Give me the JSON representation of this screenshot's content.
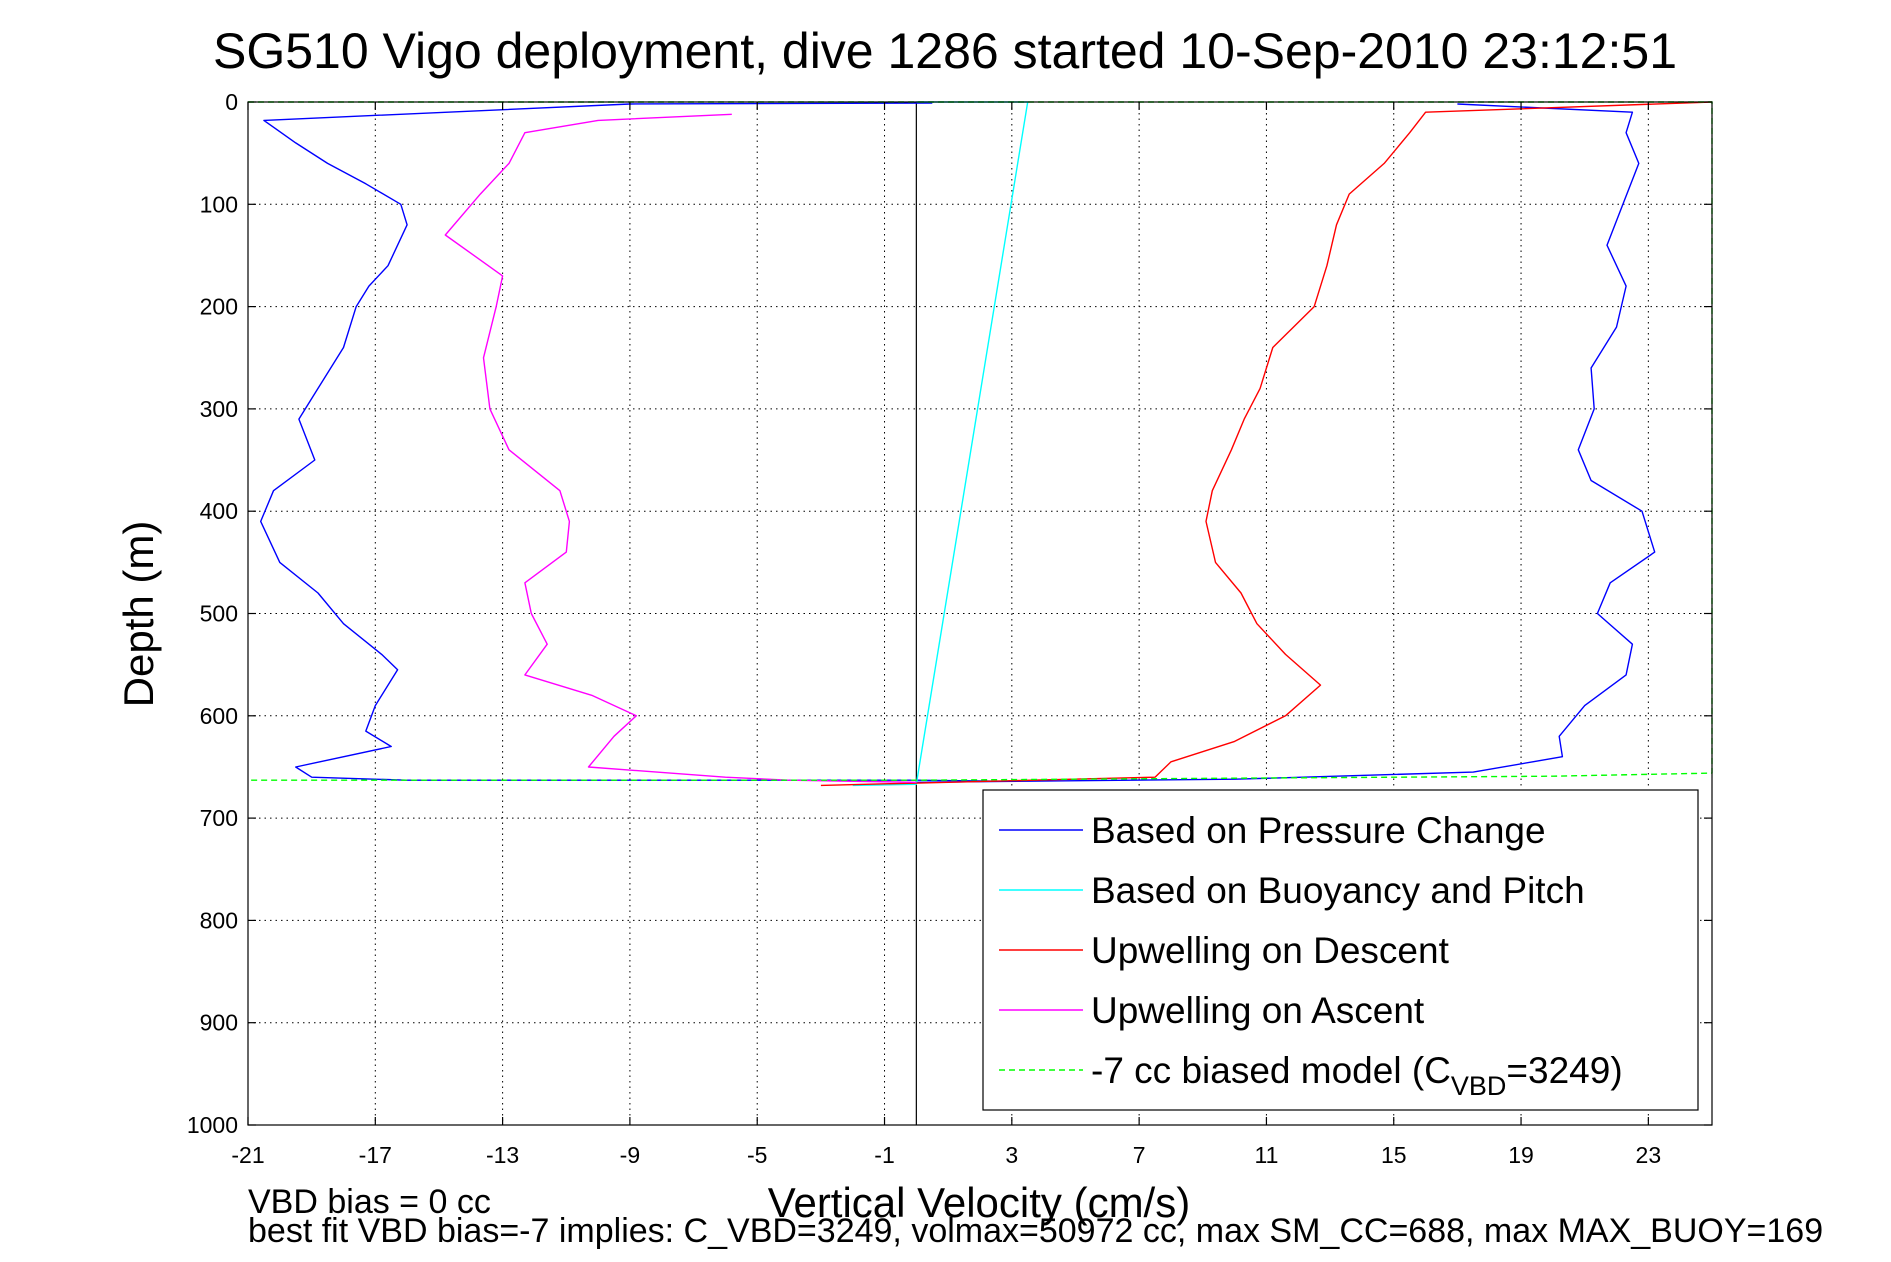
{
  "chart_data": {
    "type": "line",
    "title": "SG510 Vigo deployment, dive 1286 started 10-Sep-2010 23:12:51",
    "xlabel": "Vertical Velocity (cm/s)",
    "ylabel": "Depth (m)",
    "xlim": [
      -21,
      25
    ],
    "ylim": [
      0,
      1000
    ],
    "y_reversed": true,
    "grid": true,
    "xticks": [
      -21,
      -17,
      -13,
      -9,
      -5,
      -1,
      3,
      7,
      11,
      15,
      19,
      23
    ],
    "yticks": [
      0,
      100,
      200,
      300,
      400,
      500,
      600,
      700,
      800,
      900,
      1000
    ],
    "zero_line": 0,
    "legend": {
      "placement": "bottom-right",
      "entries": [
        {
          "label": "Based on Pressure Change",
          "color": "#0000ff",
          "dash": false
        },
        {
          "label": "Based on Buoyancy and Pitch",
          "color": "#00ffff",
          "dash": false
        },
        {
          "label": "Upwelling on Descent",
          "color": "#ff0000",
          "dash": false
        },
        {
          "label": "Upwelling on Ascent",
          "color": "#ff00ff",
          "dash": false
        },
        {
          "label": "-7 cc biased model (C",
          "sub": "VBD",
          "suffix": "=3249)",
          "color": "#00ff00",
          "dash": true
        }
      ]
    },
    "series": [
      {
        "name": "Based on Pressure Change (descent)",
        "color": "#0000ff",
        "points": [
          [
            0.5,
            1
          ],
          [
            -9,
            2
          ],
          [
            -20.5,
            18
          ],
          [
            -19.5,
            40
          ],
          [
            -18.5,
            60
          ],
          [
            -17.3,
            80
          ],
          [
            -16.2,
            100
          ],
          [
            -16,
            120
          ],
          [
            -16.6,
            160
          ],
          [
            -17.2,
            180
          ],
          [
            -17.6,
            200
          ],
          [
            -18,
            240
          ],
          [
            -18.8,
            280
          ],
          [
            -19.4,
            310
          ],
          [
            -18.9,
            350
          ],
          [
            -20.2,
            380
          ],
          [
            -20.6,
            410
          ],
          [
            -20,
            450
          ],
          [
            -18.8,
            480
          ],
          [
            -18,
            510
          ],
          [
            -16.8,
            540
          ],
          [
            -16.3,
            555
          ],
          [
            -17,
            590
          ],
          [
            -17.3,
            615
          ],
          [
            -16.5,
            630
          ],
          [
            -19.5,
            650
          ],
          [
            -19,
            660
          ],
          [
            -16,
            663
          ],
          [
            0,
            663
          ],
          [
            3,
            664
          ]
        ]
      },
      {
        "name": "Based on Pressure Change (ascent)",
        "color": "#0000ff",
        "points": [
          [
            17,
            2
          ],
          [
            22.5,
            10
          ],
          [
            22.3,
            30
          ],
          [
            22.7,
            60
          ],
          [
            22.2,
            100
          ],
          [
            21.7,
            140
          ],
          [
            22.3,
            180
          ],
          [
            22,
            220
          ],
          [
            21.2,
            260
          ],
          [
            21.3,
            300
          ],
          [
            20.8,
            340
          ],
          [
            21.2,
            370
          ],
          [
            22.8,
            400
          ],
          [
            23.2,
            440
          ],
          [
            21.8,
            470
          ],
          [
            21.4,
            500
          ],
          [
            22.5,
            530
          ],
          [
            22.3,
            560
          ],
          [
            21,
            590
          ],
          [
            20.2,
            620
          ],
          [
            20.3,
            640
          ],
          [
            17.5,
            655
          ],
          [
            10,
            662
          ],
          [
            0,
            665
          ]
        ]
      },
      {
        "name": "Based on Buoyancy and Pitch",
        "color": "#00ffff",
        "points": [
          [
            0,
            0
          ],
          [
            0.5,
            0
          ],
          [
            3.5,
            0
          ],
          [
            0,
            667
          ],
          [
            -2,
            668
          ]
        ]
      },
      {
        "name": "Upwelling on Descent",
        "color": "#ff0000",
        "points": [
          [
            25,
            0
          ],
          [
            16,
            10
          ],
          [
            15.5,
            30
          ],
          [
            14.7,
            60
          ],
          [
            13.6,
            90
          ],
          [
            13.2,
            120
          ],
          [
            12.9,
            160
          ],
          [
            12.5,
            200
          ],
          [
            11.2,
            240
          ],
          [
            10.8,
            280
          ],
          [
            10.3,
            310
          ],
          [
            9.9,
            340
          ],
          [
            9.3,
            380
          ],
          [
            9.1,
            410
          ],
          [
            9.4,
            450
          ],
          [
            10.2,
            480
          ],
          [
            10.7,
            510
          ],
          [
            11.6,
            540
          ],
          [
            12.7,
            570
          ],
          [
            11.6,
            600
          ],
          [
            10,
            625
          ],
          [
            8,
            645
          ],
          [
            7.5,
            660
          ],
          [
            1,
            665
          ],
          [
            -3,
            668
          ]
        ]
      },
      {
        "name": "Upwelling on Ascent",
        "color": "#ff00ff",
        "points": [
          [
            -5.8,
            12
          ],
          [
            -10,
            18
          ],
          [
            -12.3,
            30
          ],
          [
            -12.8,
            60
          ],
          [
            -13.7,
            90
          ],
          [
            -14.8,
            130
          ],
          [
            -13,
            170
          ],
          [
            -13.2,
            200
          ],
          [
            -13.6,
            250
          ],
          [
            -13.4,
            300
          ],
          [
            -12.8,
            340
          ],
          [
            -11.2,
            380
          ],
          [
            -10.9,
            410
          ],
          [
            -11,
            440
          ],
          [
            -12.3,
            470
          ],
          [
            -12.1,
            500
          ],
          [
            -11.6,
            530
          ],
          [
            -12.3,
            560
          ],
          [
            -10.2,
            580
          ],
          [
            -8.8,
            600
          ],
          [
            -9.5,
            620
          ],
          [
            -10.3,
            650
          ],
          [
            -6,
            660
          ],
          [
            -4,
            663
          ],
          [
            0,
            665
          ]
        ]
      },
      {
        "name": "-7 cc biased model",
        "color": "#00ff00",
        "dash": true,
        "points": [
          [
            -21,
            0
          ],
          [
            25,
            0
          ],
          [
            25,
            656
          ],
          [
            20,
            659
          ],
          [
            0,
            663
          ],
          [
            -21,
            663
          ]
        ]
      }
    ]
  },
  "footer": {
    "line1": "VBD bias = 0 cc",
    "line2": "best fit VBD bias=-7 implies: C_VBD=3249, volmax=50972 cc, max SM_CC=688, max MAX_BUOY=169"
  }
}
